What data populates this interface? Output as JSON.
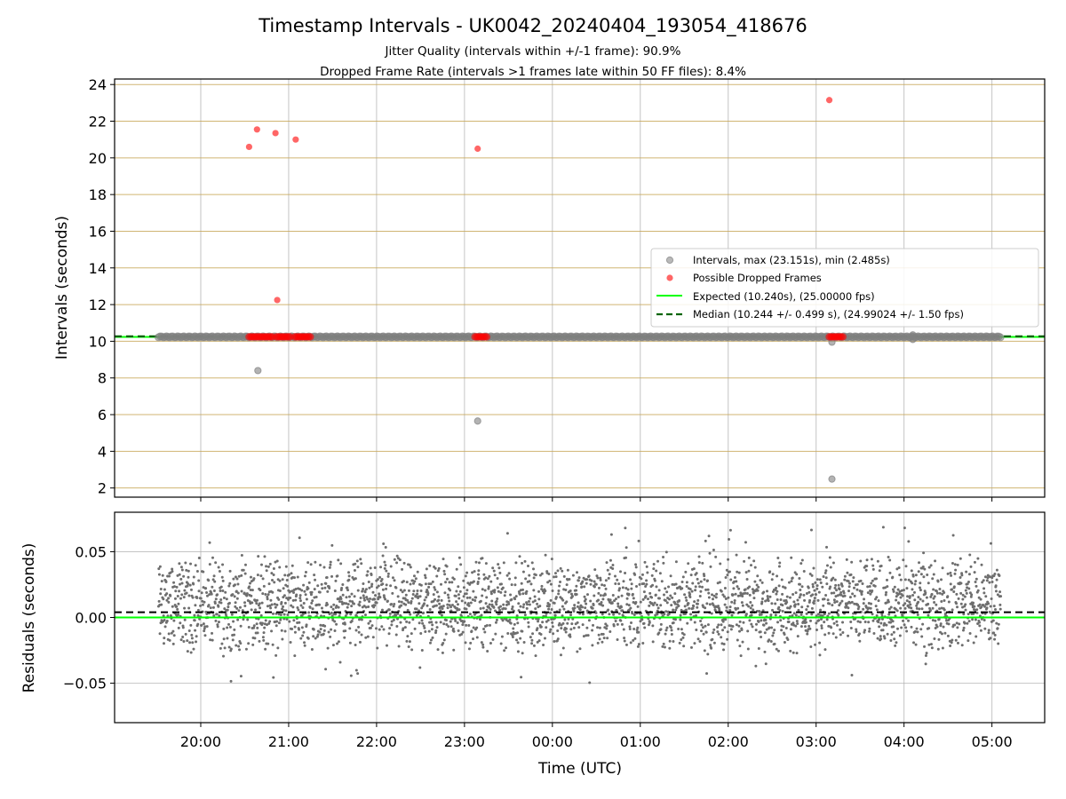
{
  "chart_data": [
    {
      "type": "scatter",
      "title": "Timestamp Intervals - UK0042_20240404_193054_418676",
      "subtitle_lines": [
        "Jitter Quality (intervals within +/-1 frame): 90.9%",
        "Dropped Frame Rate (intervals >1 frames late within 50 FF files): 8.4%"
      ],
      "ylabel": "Intervals (seconds)",
      "xlabel": "",
      "ylim": [
        1.5,
        24.3
      ],
      "yticks": [
        2,
        4,
        6,
        8,
        10,
        12,
        14,
        16,
        18,
        20,
        22,
        24
      ],
      "xlim_hours": [
        19.02,
        29.6
      ],
      "xticks_hours": [
        20,
        21,
        22,
        23,
        24,
        25,
        26,
        27,
        28,
        29
      ],
      "xtick_labels": [
        "20:00",
        "21:00",
        "22:00",
        "23:00",
        "00:00",
        "01:00",
        "02:00",
        "03:00",
        "04:00",
        "05:00"
      ],
      "grid": true,
      "legend_placement": "center-right",
      "legend": {
        "intervals": "Intervals, max (23.151s), min (2.485s)",
        "dropped": "Possible Dropped Frames",
        "expected": "Expected (10.240s), (25.00000 fps)",
        "median": "Median (10.244 +/- 0.499 s), (24.99024 +/- 1.50 fps)"
      },
      "colors": {
        "intervals": "#808080",
        "dropped": "#ff0000",
        "expected": "#00ff00",
        "median": "#006400",
        "hgrid": "#c8a85a",
        "vgrid": "#b0b0b0"
      },
      "expected": 10.24,
      "median": 10.244,
      "interval_band": {
        "x_start": 19.52,
        "x_end": 29.1,
        "y": 10.24
      },
      "interval_outliers": [
        {
          "x": 20.65,
          "y": 8.4
        },
        {
          "x": 23.15,
          "y": 5.65
        },
        {
          "x": 27.18,
          "y": 9.95
        },
        {
          "x": 27.18,
          "y": 2.485
        },
        {
          "x": 28.1,
          "y": 10.1
        },
        {
          "x": 28.1,
          "y": 10.35
        }
      ],
      "dropped_frames": [
        {
          "x": 20.55,
          "y": 20.6
        },
        {
          "x": 20.64,
          "y": 21.55
        },
        {
          "x": 20.85,
          "y": 21.35
        },
        {
          "x": 21.08,
          "y": 21.0
        },
        {
          "x": 20.87,
          "y": 12.25
        },
        {
          "x": 23.15,
          "y": 20.5
        },
        {
          "x": 27.15,
          "y": 23.151
        }
      ],
      "dropped_clusters": [
        {
          "x_start": 20.55,
          "x_end": 20.82
        },
        {
          "x_start": 20.86,
          "x_end": 21.02
        },
        {
          "x_start": 21.07,
          "x_end": 21.25
        },
        {
          "x_start": 23.12,
          "x_end": 23.27
        },
        {
          "x_start": 27.15,
          "x_end": 27.32
        }
      ]
    },
    {
      "type": "scatter",
      "ylabel": "Residuals (seconds)",
      "xlabel": "Time (UTC)",
      "ylim": [
        -0.08,
        0.08
      ],
      "yticks": [
        -0.05,
        0.0,
        0.05
      ],
      "ytick_labels": [
        "−0.05",
        "0.00",
        "0.05"
      ],
      "xlim_hours": [
        19.02,
        29.6
      ],
      "xticks_hours": [
        20,
        21,
        22,
        23,
        24,
        25,
        26,
        27,
        28,
        29
      ],
      "xtick_labels": [
        "20:00",
        "21:00",
        "22:00",
        "23:00",
        "00:00",
        "01:00",
        "02:00",
        "03:00",
        "04:00",
        "05:00"
      ],
      "grid": true,
      "expected_residual": 0.0,
      "median_residual": 0.004,
      "residual_span_hours": [
        19.52,
        29.1
      ],
      "residual_point_count": 3000,
      "residual_spread": {
        "min": -0.05,
        "max": 0.07,
        "typical_low": -0.03,
        "typical_high": 0.05
      }
    }
  ]
}
